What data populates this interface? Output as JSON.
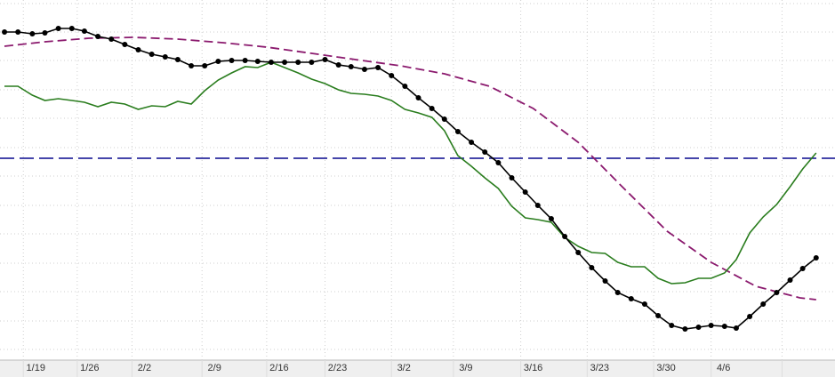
{
  "chart_data": {
    "type": "line",
    "xlim": [
      -3.8,
      89.2
    ],
    "ylim": [
      0,
      405
    ],
    "xticks": [
      {
        "value": -1.2,
        "label": "1/19"
      },
      {
        "value": 4.8,
        "label": "1/26"
      },
      {
        "value": 10.9,
        "label": "2/2"
      },
      {
        "value": 18.7,
        "label": "2/9"
      },
      {
        "value": 25.9,
        "label": "2/16"
      },
      {
        "value": 32.4,
        "label": "2/23"
      },
      {
        "value": 39.8,
        "label": "3/2"
      },
      {
        "value": 46.7,
        "label": "3/9"
      },
      {
        "value": 54.2,
        "label": "3/16"
      },
      {
        "value": 61.6,
        "label": "3/23"
      },
      {
        "value": 69.0,
        "label": "3/30"
      },
      {
        "value": 75.4,
        "label": "4/6"
      },
      {
        "value": 83.3,
        "label": null
      }
    ],
    "yticks": [
      12,
      44,
      77,
      109,
      142,
      174,
      207,
      239,
      272,
      304,
      337,
      369,
      401
    ],
    "grid": true,
    "series": [
      {
        "color": "#000000",
        "marker": "circle",
        "linestyle": "solid",
        "x": [
          -3.3,
          -1.8,
          -0.2,
          1.2,
          2.7,
          4.2,
          5.6,
          7.1,
          8.6,
          10.1,
          11.6,
          13.1,
          14.6,
          16.0,
          17.5,
          19.0,
          20.5,
          22.0,
          23.5,
          24.9,
          26.4,
          27.9,
          29.4,
          30.9,
          32.4,
          33.9,
          35.3,
          36.8,
          38.3,
          39.8,
          41.3,
          42.8,
          44.3,
          45.7,
          47.2,
          48.7,
          50.2,
          51.7,
          53.2,
          54.7,
          56.1,
          57.6,
          59.1,
          60.6,
          62.1,
          63.6,
          65.0,
          66.5,
          68.0,
          69.5,
          71.0,
          72.5,
          74.0,
          75.4,
          76.9,
          78.2,
          79.7,
          81.2,
          82.7,
          84.2,
          85.6,
          87.1
        ],
        "values": [
          369,
          369,
          367,
          368,
          373,
          373,
          370,
          364,
          361,
          355,
          349,
          344,
          341,
          338,
          331,
          331,
          336,
          337,
          337,
          336,
          335,
          335,
          335,
          335,
          338,
          332,
          330,
          327,
          329,
          320,
          308,
          295,
          283,
          271,
          257,
          245,
          234,
          222,
          205,
          189,
          174,
          159,
          139,
          121,
          104,
          89,
          76,
          69,
          63,
          50,
          39,
          35,
          37,
          39,
          38,
          36,
          49,
          63,
          76,
          90,
          103,
          115
        ]
      },
      {
        "color": "#2a7d1e",
        "marker": "none",
        "linestyle": "solid",
        "x": [
          -3.3,
          -1.8,
          -0.2,
          1.2,
          2.7,
          4.2,
          5.6,
          7.1,
          8.6,
          10.1,
          11.6,
          13.1,
          14.6,
          16.0,
          17.5,
          19.0,
          20.5,
          22.0,
          23.5,
          24.9,
          26.4,
          27.9,
          29.4,
          30.9,
          32.4,
          33.9,
          35.3,
          36.8,
          38.3,
          39.8,
          41.3,
          42.8,
          44.3,
          45.7,
          47.2,
          48.7,
          50.2,
          51.7,
          53.2,
          54.7,
          56.1,
          57.6,
          59.1,
          60.6,
          62.1,
          63.6,
          65.0,
          66.5,
          68.0,
          69.5,
          71.0,
          72.5,
          74.0,
          75.4,
          76.9,
          78.2,
          79.7,
          81.2,
          82.7,
          84.2,
          85.6,
          87.1
        ],
        "values": [
          308,
          308,
          298,
          292,
          294,
          292,
          290,
          285,
          290,
          288,
          282,
          286,
          285,
          291,
          288,
          303,
          315,
          323,
          330,
          329,
          335,
          329,
          323,
          316,
          311,
          304,
          300,
          299,
          297,
          292,
          282,
          278,
          273,
          258,
          230,
          218,
          205,
          193,
          173,
          160,
          158,
          155,
          138,
          128,
          121,
          120,
          110,
          105,
          105,
          92,
          86,
          87,
          92,
          92,
          98,
          113,
          143,
          161,
          175,
          195,
          215,
          233
        ]
      },
      {
        "color": "#8b1a6e",
        "marker": "none",
        "linestyle": "dashed",
        "x": [
          -3.3,
          1.2,
          6.1,
          11.1,
          16.0,
          21.0,
          25.9,
          30.9,
          35.8,
          40.8,
          45.7,
          50.7,
          55.6,
          60.6,
          65.5,
          70.5,
          75.4,
          80.4,
          85.3,
          87.1
        ],
        "values": [
          353,
          358,
          362,
          363,
          361,
          357,
          352,
          345,
          338,
          331,
          322,
          308,
          283,
          245,
          195,
          145,
          110,
          83,
          70,
          68
        ]
      },
      {
        "color": "#2b2b9e",
        "marker": "none",
        "linestyle": "longdash",
        "x": [
          -3.8,
          89.2
        ],
        "values": [
          227,
          227
        ]
      }
    ]
  }
}
